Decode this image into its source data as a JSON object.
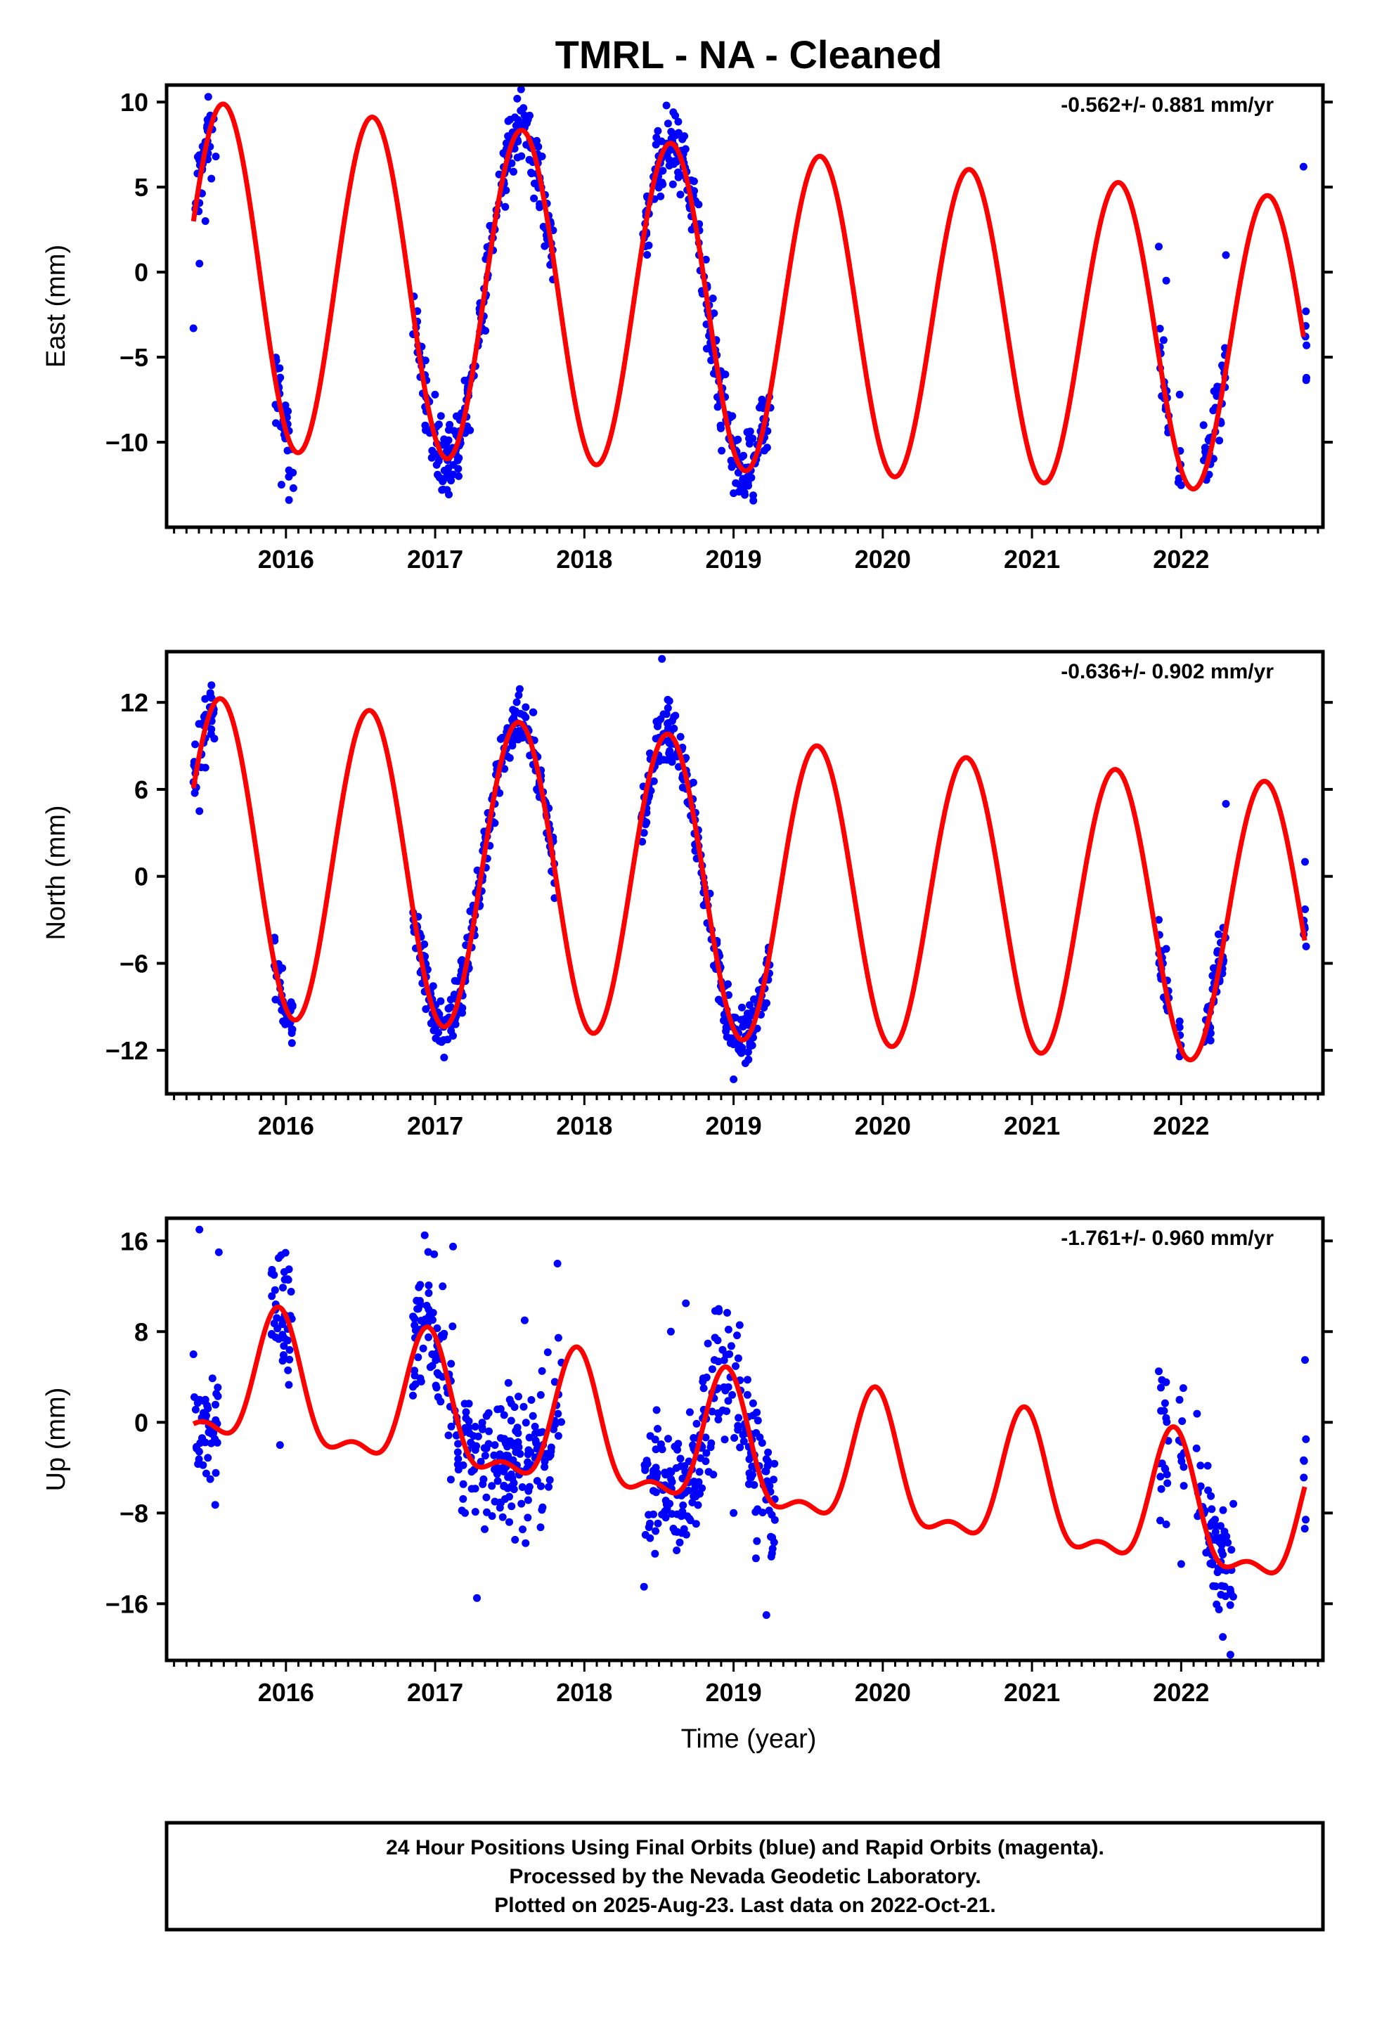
{
  "figure": {
    "title": "TMRL  - NA - Cleaned",
    "xlabel": "Time (year)",
    "footer": [
      "24 Hour Positions Using Final Orbits (blue) and Rapid Orbits (magenta).",
      "Processed by the Nevada Geodetic Laboratory.",
      "Plotted on 2025-Aug-23. Last data on 2022-Oct-21."
    ]
  },
  "colors": {
    "observed": "#0000ff",
    "model": "#ff0000",
    "frame": "#000000"
  },
  "chart_data": [
    {
      "type": "scatter",
      "ylabel": "East (mm)",
      "rate_label": "-0.562+/- 0.881 mm/yr",
      "xlim": [
        2015.2,
        2022.95
      ],
      "ylim": [
        -15,
        11
      ],
      "xticks": [
        2016,
        2017,
        2018,
        2019,
        2020,
        2021,
        2022
      ],
      "yticks": [
        10,
        5,
        0,
        -5,
        -10
      ],
      "ytick_labels": [
        "10",
        "5",
        "0",
        "−5",
        "−10"
      ],
      "grid": false,
      "model": {
        "offset": -2.2,
        "trend": -0.562,
        "amplitude": 10.2,
        "amp_decay": 0.15,
        "peak_phase": 0.58,
        "t0": 2019.0
      },
      "observed_segments": [
        [
          2015.38,
          2015.52
        ],
        [
          2015.92,
          2016.05
        ],
        [
          2016.85,
          2017.15
        ],
        [
          2017.15,
          2017.5
        ],
        [
          2017.5,
          2017.8
        ],
        [
          2018.38,
          2018.68
        ],
        [
          2018.68,
          2019.0
        ],
        [
          2019.0,
          2019.25
        ],
        [
          2021.85,
          2021.92
        ],
        [
          2021.98,
          2022.0
        ],
        [
          2022.15,
          2022.3
        ],
        [
          2022.82,
          2022.84
        ]
      ],
      "observed_points": [
        [
          2015.38,
          -3.3
        ],
        [
          2015.42,
          0.5
        ],
        [
          2015.46,
          3.0
        ],
        [
          2015.5,
          5.5
        ],
        [
          2015.53,
          6.8
        ],
        [
          2015.93,
          -7.8
        ],
        [
          2015.97,
          -12.5
        ],
        [
          2016.02,
          -13.4
        ],
        [
          2016.05,
          -12.7
        ],
        [
          2016.88,
          -2.9
        ],
        [
          2016.92,
          -6.2
        ],
        [
          2016.98,
          -10.5
        ],
        [
          2017.05,
          -12.3
        ],
        [
          2017.12,
          -11.9
        ],
        [
          2017.2,
          -8.0
        ],
        [
          2017.3,
          -3.5
        ],
        [
          2017.4,
          2.5
        ],
        [
          2017.5,
          7.2
        ],
        [
          2017.55,
          10.2
        ],
        [
          2017.6,
          8.5
        ],
        [
          2017.7,
          4.0
        ],
        [
          2017.78,
          0.5
        ],
        [
          2018.4,
          2.0
        ],
        [
          2018.48,
          7.5
        ],
        [
          2018.55,
          9.8
        ],
        [
          2018.62,
          6.5
        ],
        [
          2018.72,
          2.5
        ],
        [
          2018.82,
          -4.5
        ],
        [
          2018.92,
          -10.5
        ],
        [
          2019.0,
          -13.0
        ],
        [
          2019.08,
          -11.5
        ],
        [
          2019.2,
          -8.0
        ],
        [
          2021.85,
          1.5
        ],
        [
          2021.9,
          -0.5
        ],
        [
          2021.99,
          -7.2
        ],
        [
          2022.15,
          -9.0
        ],
        [
          2022.22,
          -7.0
        ],
        [
          2022.3,
          1.0
        ],
        [
          2022.82,
          6.2
        ]
      ]
    },
    {
      "type": "scatter",
      "ylabel": "North (mm)",
      "rate_label": "-0.636+/- 0.902 mm/yr",
      "xlim": [
        2015.2,
        2022.95
      ],
      "ylim": [
        -15,
        15.5
      ],
      "xticks": [
        2016,
        2017,
        2018,
        2019,
        2020,
        2021,
        2022
      ],
      "yticks": [
        12,
        6,
        0,
        -6,
        -12
      ],
      "ytick_labels": [
        "12",
        "6",
        "0",
        "−6",
        "−12"
      ],
      "grid": false,
      "model": {
        "offset": -0.9,
        "trend": -0.636,
        "amplitude": 11.0,
        "amp_decay": 0.12,
        "peak_phase": 0.56,
        "t0": 2019.0
      },
      "observed_segments": [
        [
          2015.38,
          2015.52
        ],
        [
          2015.92,
          2016.05
        ],
        [
          2016.85,
          2017.15
        ],
        [
          2017.15,
          2017.5
        ],
        [
          2017.5,
          2017.8
        ],
        [
          2018.38,
          2018.68
        ],
        [
          2018.68,
          2019.0
        ],
        [
          2019.0,
          2019.25
        ],
        [
          2021.85,
          2021.92
        ],
        [
          2021.98,
          2022.0
        ],
        [
          2022.15,
          2022.3
        ],
        [
          2022.82,
          2022.84
        ]
      ],
      "observed_points": [
        [
          2015.38,
          6.5
        ],
        [
          2015.42,
          4.5
        ],
        [
          2015.46,
          7.5
        ],
        [
          2015.52,
          9.5
        ],
        [
          2015.93,
          -8.5
        ],
        [
          2015.98,
          -10.0
        ],
        [
          2016.04,
          -11.5
        ],
        [
          2016.88,
          -3.5
        ],
        [
          2016.93,
          -7.0
        ],
        [
          2017.0,
          -10.5
        ],
        [
          2017.06,
          -12.5
        ],
        [
          2017.12,
          -11.0
        ],
        [
          2017.2,
          -7.0
        ],
        [
          2017.3,
          -2.0
        ],
        [
          2017.4,
          5.0
        ],
        [
          2017.5,
          9.5
        ],
        [
          2017.56,
          12.5
        ],
        [
          2017.62,
          10.0
        ],
        [
          2017.7,
          5.5
        ],
        [
          2017.8,
          -1.5
        ],
        [
          2018.4,
          3.0
        ],
        [
          2018.48,
          9.5
        ],
        [
          2018.52,
          15.0
        ],
        [
          2018.6,
          11.0
        ],
        [
          2018.7,
          5.0
        ],
        [
          2018.8,
          -2.0
        ],
        [
          2018.9,
          -8.5
        ],
        [
          2018.98,
          -11.5
        ],
        [
          2019.0,
          -14.0
        ],
        [
          2019.1,
          -10.0
        ],
        [
          2019.22,
          -6.0
        ],
        [
          2021.85,
          -3.0
        ],
        [
          2021.9,
          -5.0
        ],
        [
          2021.99,
          -10.0
        ],
        [
          2022.18,
          -9.0
        ],
        [
          2022.25,
          -4.0
        ],
        [
          2022.3,
          5.0
        ],
        [
          2022.83,
          1.0
        ]
      ]
    },
    {
      "type": "scatter",
      "ylabel": "Up (mm)",
      "rate_label": "-1.761+/- 0.960 mm/yr",
      "xlim": [
        2015.2,
        2022.95
      ],
      "ylim": [
        -21,
        18
      ],
      "xticks": [
        2016,
        2017,
        2018,
        2019,
        2020,
        2021,
        2022
      ],
      "yticks": [
        16,
        8,
        0,
        -8,
        -16
      ],
      "ytick_labels": [
        "16",
        "8",
        "0",
        "−8",
        "−16"
      ],
      "grid": false,
      "model": {
        "offset": -3.0,
        "trend": -1.761,
        "amplitude": 5.5,
        "amp_decay": 0.0,
        "peak_phase": 0.95,
        "semiannual": 2.3,
        "semi_peak_phase": 0.45,
        "t0": 2019.0
      },
      "observed_segments": [
        [
          2015.38,
          2015.55
        ],
        [
          2015.9,
          2016.05
        ],
        [
          2016.85,
          2017.15
        ],
        [
          2017.15,
          2017.5
        ],
        [
          2017.5,
          2017.85
        ],
        [
          2018.4,
          2018.65
        ],
        [
          2018.65,
          2019.0
        ],
        [
          2019.0,
          2019.28
        ],
        [
          2021.85,
          2021.92
        ],
        [
          2021.98,
          2022.02
        ],
        [
          2022.1,
          2022.35
        ],
        [
          2022.82,
          2022.84
        ]
      ],
      "observed_points": [
        [
          2015.38,
          6.0
        ],
        [
          2015.42,
          17.0
        ],
        [
          2015.46,
          2.0
        ],
        [
          2015.5,
          -1.0
        ],
        [
          2015.55,
          15.0
        ],
        [
          2015.92,
          13.0
        ],
        [
          2015.96,
          -2.0
        ],
        [
          2016.02,
          13.5
        ],
        [
          2016.88,
          10.0
        ],
        [
          2016.93,
          16.5
        ],
        [
          2016.98,
          6.0
        ],
        [
          2017.05,
          12.0
        ],
        [
          2017.12,
          15.5
        ],
        [
          2017.2,
          -8.0
        ],
        [
          2017.28,
          -15.5
        ],
        [
          2017.4,
          -2.0
        ],
        [
          2017.5,
          2.0
        ],
        [
          2017.6,
          9.0
        ],
        [
          2017.72,
          -7.5
        ],
        [
          2017.82,
          14.0
        ],
        [
          2018.4,
          -14.5
        ],
        [
          2018.48,
          -5.0
        ],
        [
          2018.58,
          8.0
        ],
        [
          2018.68,
          10.5
        ],
        [
          2018.8,
          3.0
        ],
        [
          2018.9,
          10.0
        ],
        [
          2019.0,
          -8.0
        ],
        [
          2019.15,
          -12.0
        ],
        [
          2019.22,
          -17.0
        ],
        [
          2021.85,
          4.5
        ],
        [
          2021.9,
          -9.0
        ],
        [
          2022.0,
          -12.5
        ],
        [
          2022.18,
          -6.0
        ],
        [
          2022.28,
          -13.0
        ],
        [
          2022.33,
          -20.5
        ],
        [
          2022.83,
          5.5
        ]
      ]
    }
  ]
}
